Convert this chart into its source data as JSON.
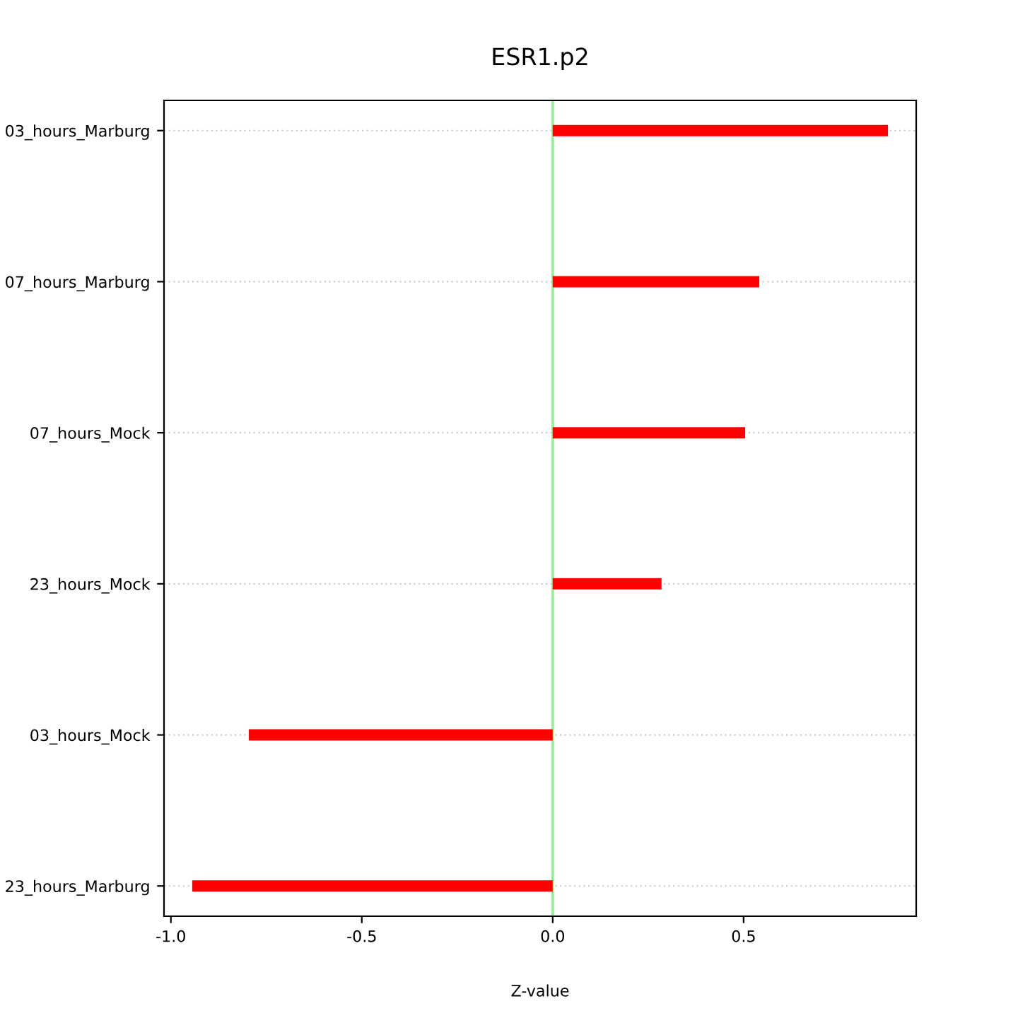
{
  "chart_data": {
    "type": "bar",
    "orientation": "horizontal",
    "title": "ESR1.p2",
    "xlabel": "Z-value",
    "categories": [
      "03_hours_Marburg",
      "07_hours_Marburg",
      "07_hours_Mock",
      "23_hours_Mock",
      "03_hours_Mock",
      "23_hours_Marburg"
    ],
    "values": [
      0.878,
      0.541,
      0.504,
      0.285,
      -0.796,
      -0.944
    ],
    "color": "#ff0000",
    "xlim": [
      -1.018,
      0.952
    ],
    "xticks": [
      {
        "value": -1.0,
        "label": "-1.0"
      },
      {
        "value": -0.5,
        "label": "-0.5"
      },
      {
        "value": 0.0,
        "label": "0.0"
      },
      {
        "value": 0.5,
        "label": "0.5"
      }
    ],
    "grid": "y",
    "ref_lines": [
      {
        "axis": "x",
        "value": 0,
        "color": "#90ee90"
      }
    ]
  }
}
